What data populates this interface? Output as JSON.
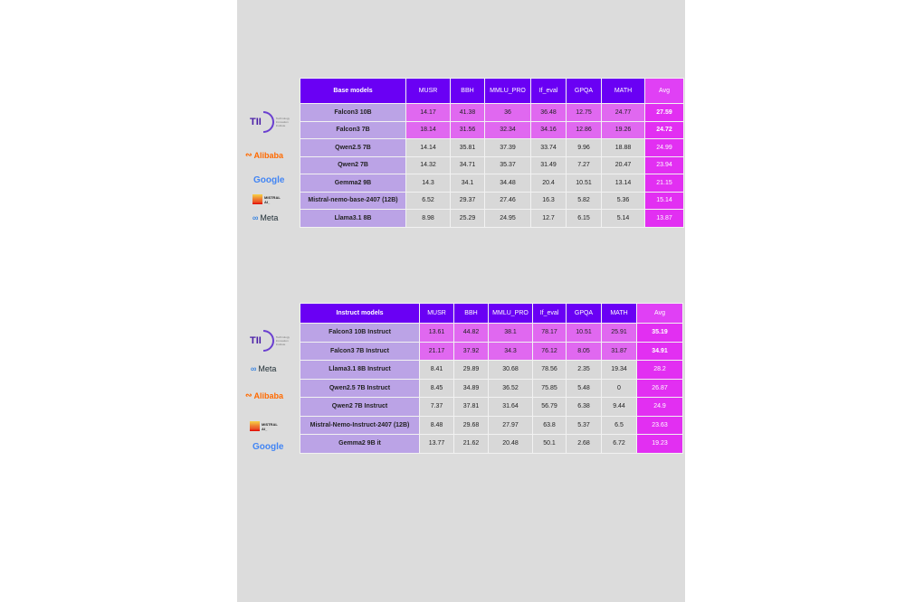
{
  "columns": [
    "MUSR",
    "BBH",
    "MMLU_PRO",
    "If_eval",
    "GPQA",
    "MATH",
    "Avg"
  ],
  "colors": {
    "header": "#6a00f4",
    "avg": "#e22ff2",
    "highlight": "#e068f0",
    "name_cell": "#bba3e6",
    "cell": "#d8d8d8"
  },
  "base_table": {
    "title": "Base models",
    "rows": [
      {
        "model": "Falcon3 10B",
        "values": [
          "14.17",
          "41.38",
          "36",
          "36.48",
          "12.75",
          "24.77",
          "27.59"
        ],
        "highlight": true
      },
      {
        "model": "Falcon3 7B",
        "values": [
          "18.14",
          "31.56",
          "32.34",
          "34.16",
          "12.86",
          "19.26",
          "24.72"
        ],
        "highlight": true
      },
      {
        "model": "Qwen2.5 7B",
        "values": [
          "14.14",
          "35.81",
          "37.39",
          "33.74",
          "9.96",
          "18.88",
          "24.99"
        ],
        "highlight": false
      },
      {
        "model": "Qwen2 7B",
        "values": [
          "14.32",
          "34.71",
          "35.37",
          "31.49",
          "7.27",
          "20.47",
          "23.94"
        ],
        "highlight": false
      },
      {
        "model": "Gemma2 9B",
        "values": [
          "14.3",
          "34.1",
          "34.48",
          "20.4",
          "10.51",
          "13.14",
          "21.15"
        ],
        "highlight": false
      },
      {
        "model": "Mistral-nemo-base-2407 (12B)",
        "values": [
          "6.52",
          "29.37",
          "27.46",
          "16.3",
          "5.82",
          "5.36",
          "15.14"
        ],
        "highlight": false
      },
      {
        "model": "Llama3.1 8B",
        "values": [
          "8.98",
          "25.29",
          "24.95",
          "12.7",
          "6.15",
          "5.14",
          "13.87"
        ],
        "highlight": false
      }
    ]
  },
  "instruct_table": {
    "title": "Instruct models",
    "rows": [
      {
        "model": "Falcon3 10B Instruct",
        "values": [
          "13.61",
          "44.82",
          "38.1",
          "78.17",
          "10.51",
          "25.91",
          "35.19"
        ],
        "highlight": true
      },
      {
        "model": "Falcon3 7B Instruct",
        "values": [
          "21.17",
          "37.92",
          "34.3",
          "76.12",
          "8.05",
          "31.87",
          "34.91"
        ],
        "highlight": true
      },
      {
        "model": "Llama3.1 8B Instruct",
        "values": [
          "8.41",
          "29.89",
          "30.68",
          "78.56",
          "2.35",
          "19.34",
          "28.2"
        ],
        "highlight": false
      },
      {
        "model": "Qwen2.5 7B Instruct",
        "values": [
          "8.45",
          "34.89",
          "36.52",
          "75.85",
          "5.48",
          "0",
          "26.87"
        ],
        "highlight": false
      },
      {
        "model": "Qwen2 7B Instruct",
        "values": [
          "7.37",
          "37.81",
          "31.64",
          "56.79",
          "6.38",
          "9.44",
          "24.9"
        ],
        "highlight": false
      },
      {
        "model": "Mistral-Nemo-Instruct-2407 (12B)",
        "values": [
          "8.48",
          "29.68",
          "27.97",
          "63.8",
          "5.37",
          "6.5",
          "23.63"
        ],
        "highlight": false
      },
      {
        "model": "Gemma2 9B it",
        "values": [
          "13.77",
          "21.62",
          "20.48",
          "50.1",
          "2.68",
          "6.72",
          "19.23"
        ],
        "highlight": false
      }
    ]
  },
  "logos": {
    "tii": {
      "mark": "TII",
      "text": "Technology Innovation Institute"
    },
    "alibaba": "Alibaba",
    "google": "Google",
    "mistral": "MISTRAL AI_",
    "meta": "Meta"
  }
}
